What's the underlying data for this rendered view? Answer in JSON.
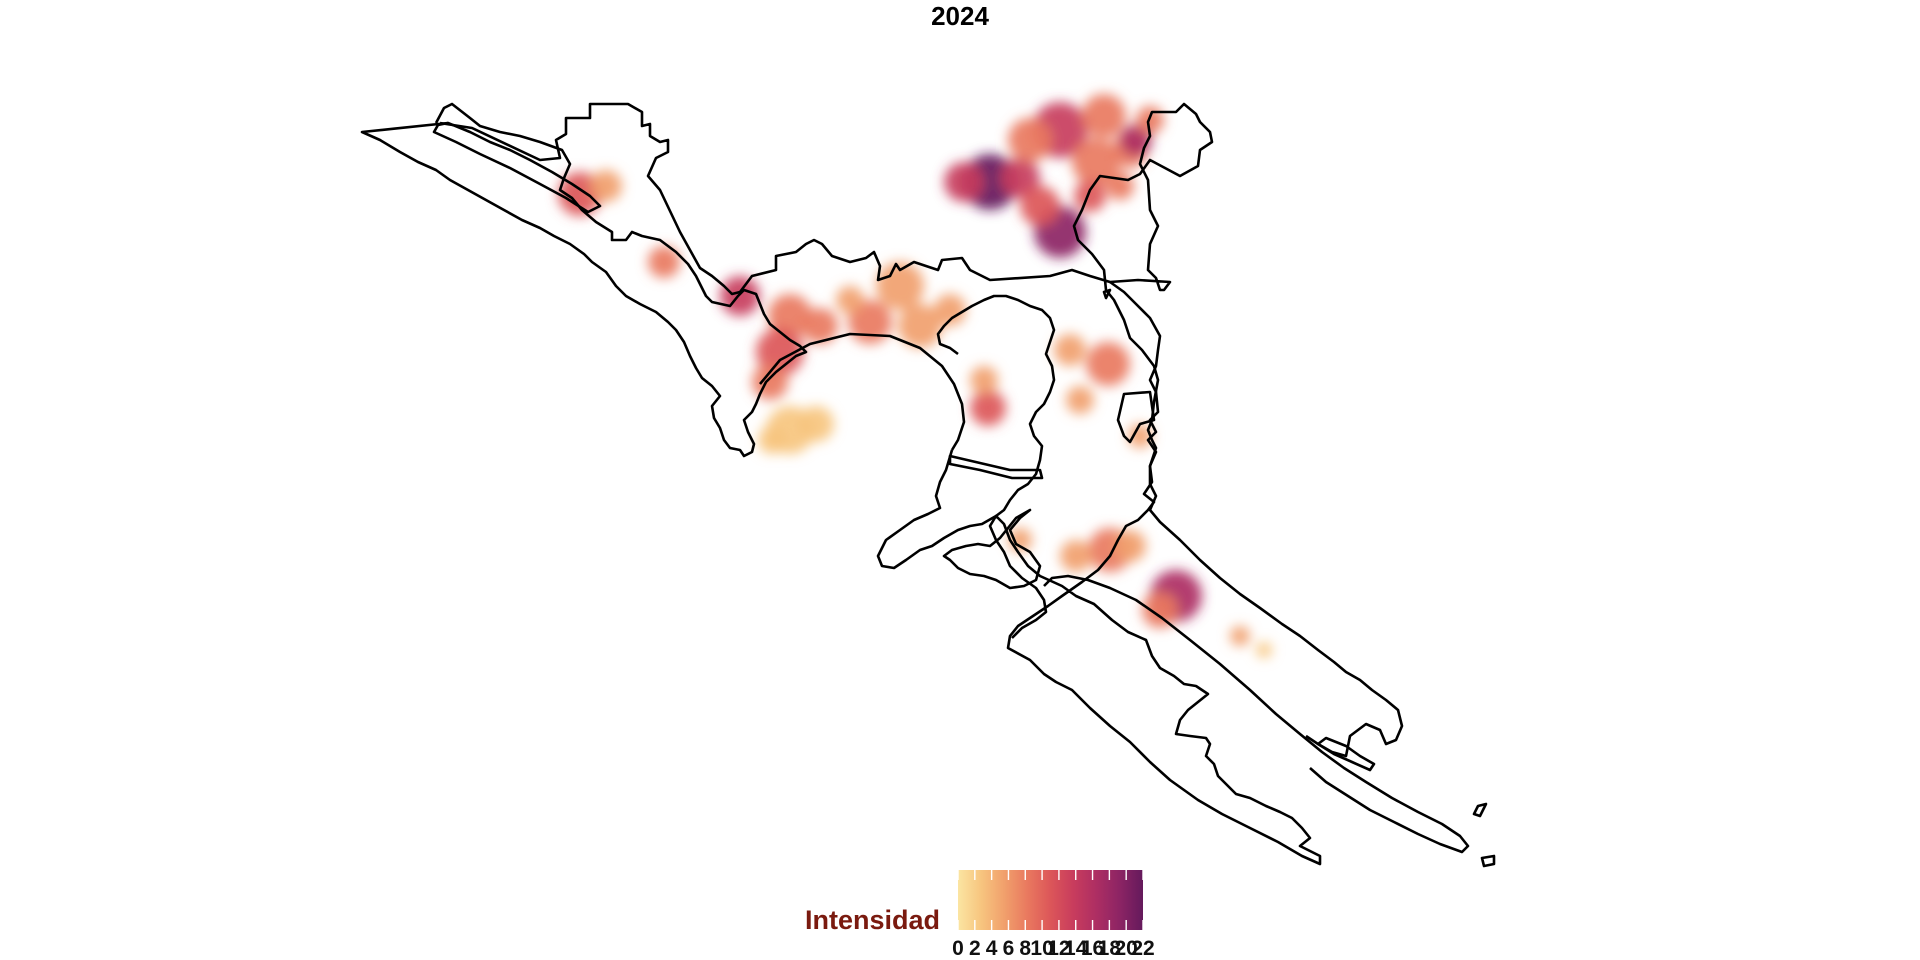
{
  "title": "2024",
  "legend": {
    "title": "Intensidad",
    "min": 0,
    "max": 22,
    "ticks": [
      "0",
      "2",
      "4",
      "6",
      "8",
      "10",
      "12",
      "14",
      "16",
      "18",
      "20",
      "22"
    ],
    "colors": [
      "#fbe5a2",
      "#f7c57f",
      "#f1a06c",
      "#e9795f",
      "#dc5659",
      "#c83c5d",
      "#ad2e63",
      "#8c2464",
      "#641a5c"
    ]
  },
  "map": {
    "outline_color": "#000000",
    "hotspots": [
      {
        "name": "northwest-coast",
        "intensity": 11
      },
      {
        "name": "northwest-inland",
        "intensity": 8
      },
      {
        "name": "west-central",
        "intensity": 13
      },
      {
        "name": "west-south",
        "intensity": 12
      },
      {
        "name": "southwest-peninsula",
        "intensity": 3
      },
      {
        "name": "central-band",
        "intensity": 9
      },
      {
        "name": "north-core-west",
        "intensity": 22
      },
      {
        "name": "north-core-east",
        "intensity": 14
      },
      {
        "name": "north-core-south",
        "intensity": 18
      },
      {
        "name": "north-tip",
        "intensity": 16
      },
      {
        "name": "east-middle",
        "intensity": 7
      },
      {
        "name": "bay-inlet",
        "intensity": 10
      },
      {
        "name": "southeast-cluster",
        "intensity": 7
      },
      {
        "name": "south-hotspot",
        "intensity": 16
      },
      {
        "name": "south-small",
        "intensity": 5
      }
    ]
  }
}
